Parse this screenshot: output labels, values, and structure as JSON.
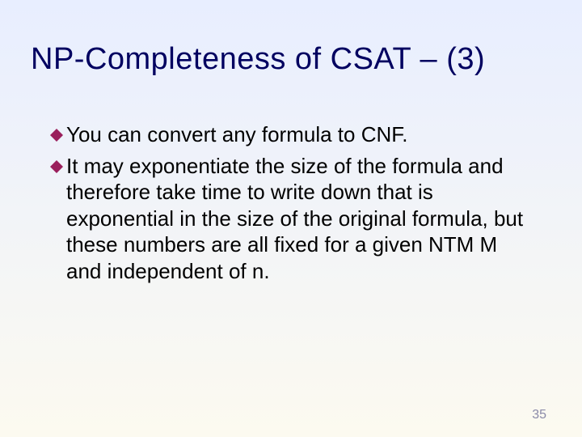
{
  "slide": {
    "title": "NP-Completeness of CSAT – (3)",
    "bullets": [
      {
        "text": "You can convert any formula to CNF."
      },
      {
        "text": "It may exponentiate the size of the formula and therefore take time to write down that is exponential in the size of the original formula, but these numbers are all fixed for a given NTM M and independent of n."
      }
    ],
    "page_number": "35"
  },
  "style": {
    "background_gradient_top": "#e8eeff",
    "background_gradient_bottom": "#fcfaf0",
    "title_color": "#000060",
    "body_text_color": "#000000",
    "bullet_color": "#9a1f5c",
    "page_number_color": "#8a8aa8",
    "title_fontsize": 38,
    "body_fontsize": 26,
    "page_number_fontsize": 16,
    "bullet_size": 16
  }
}
